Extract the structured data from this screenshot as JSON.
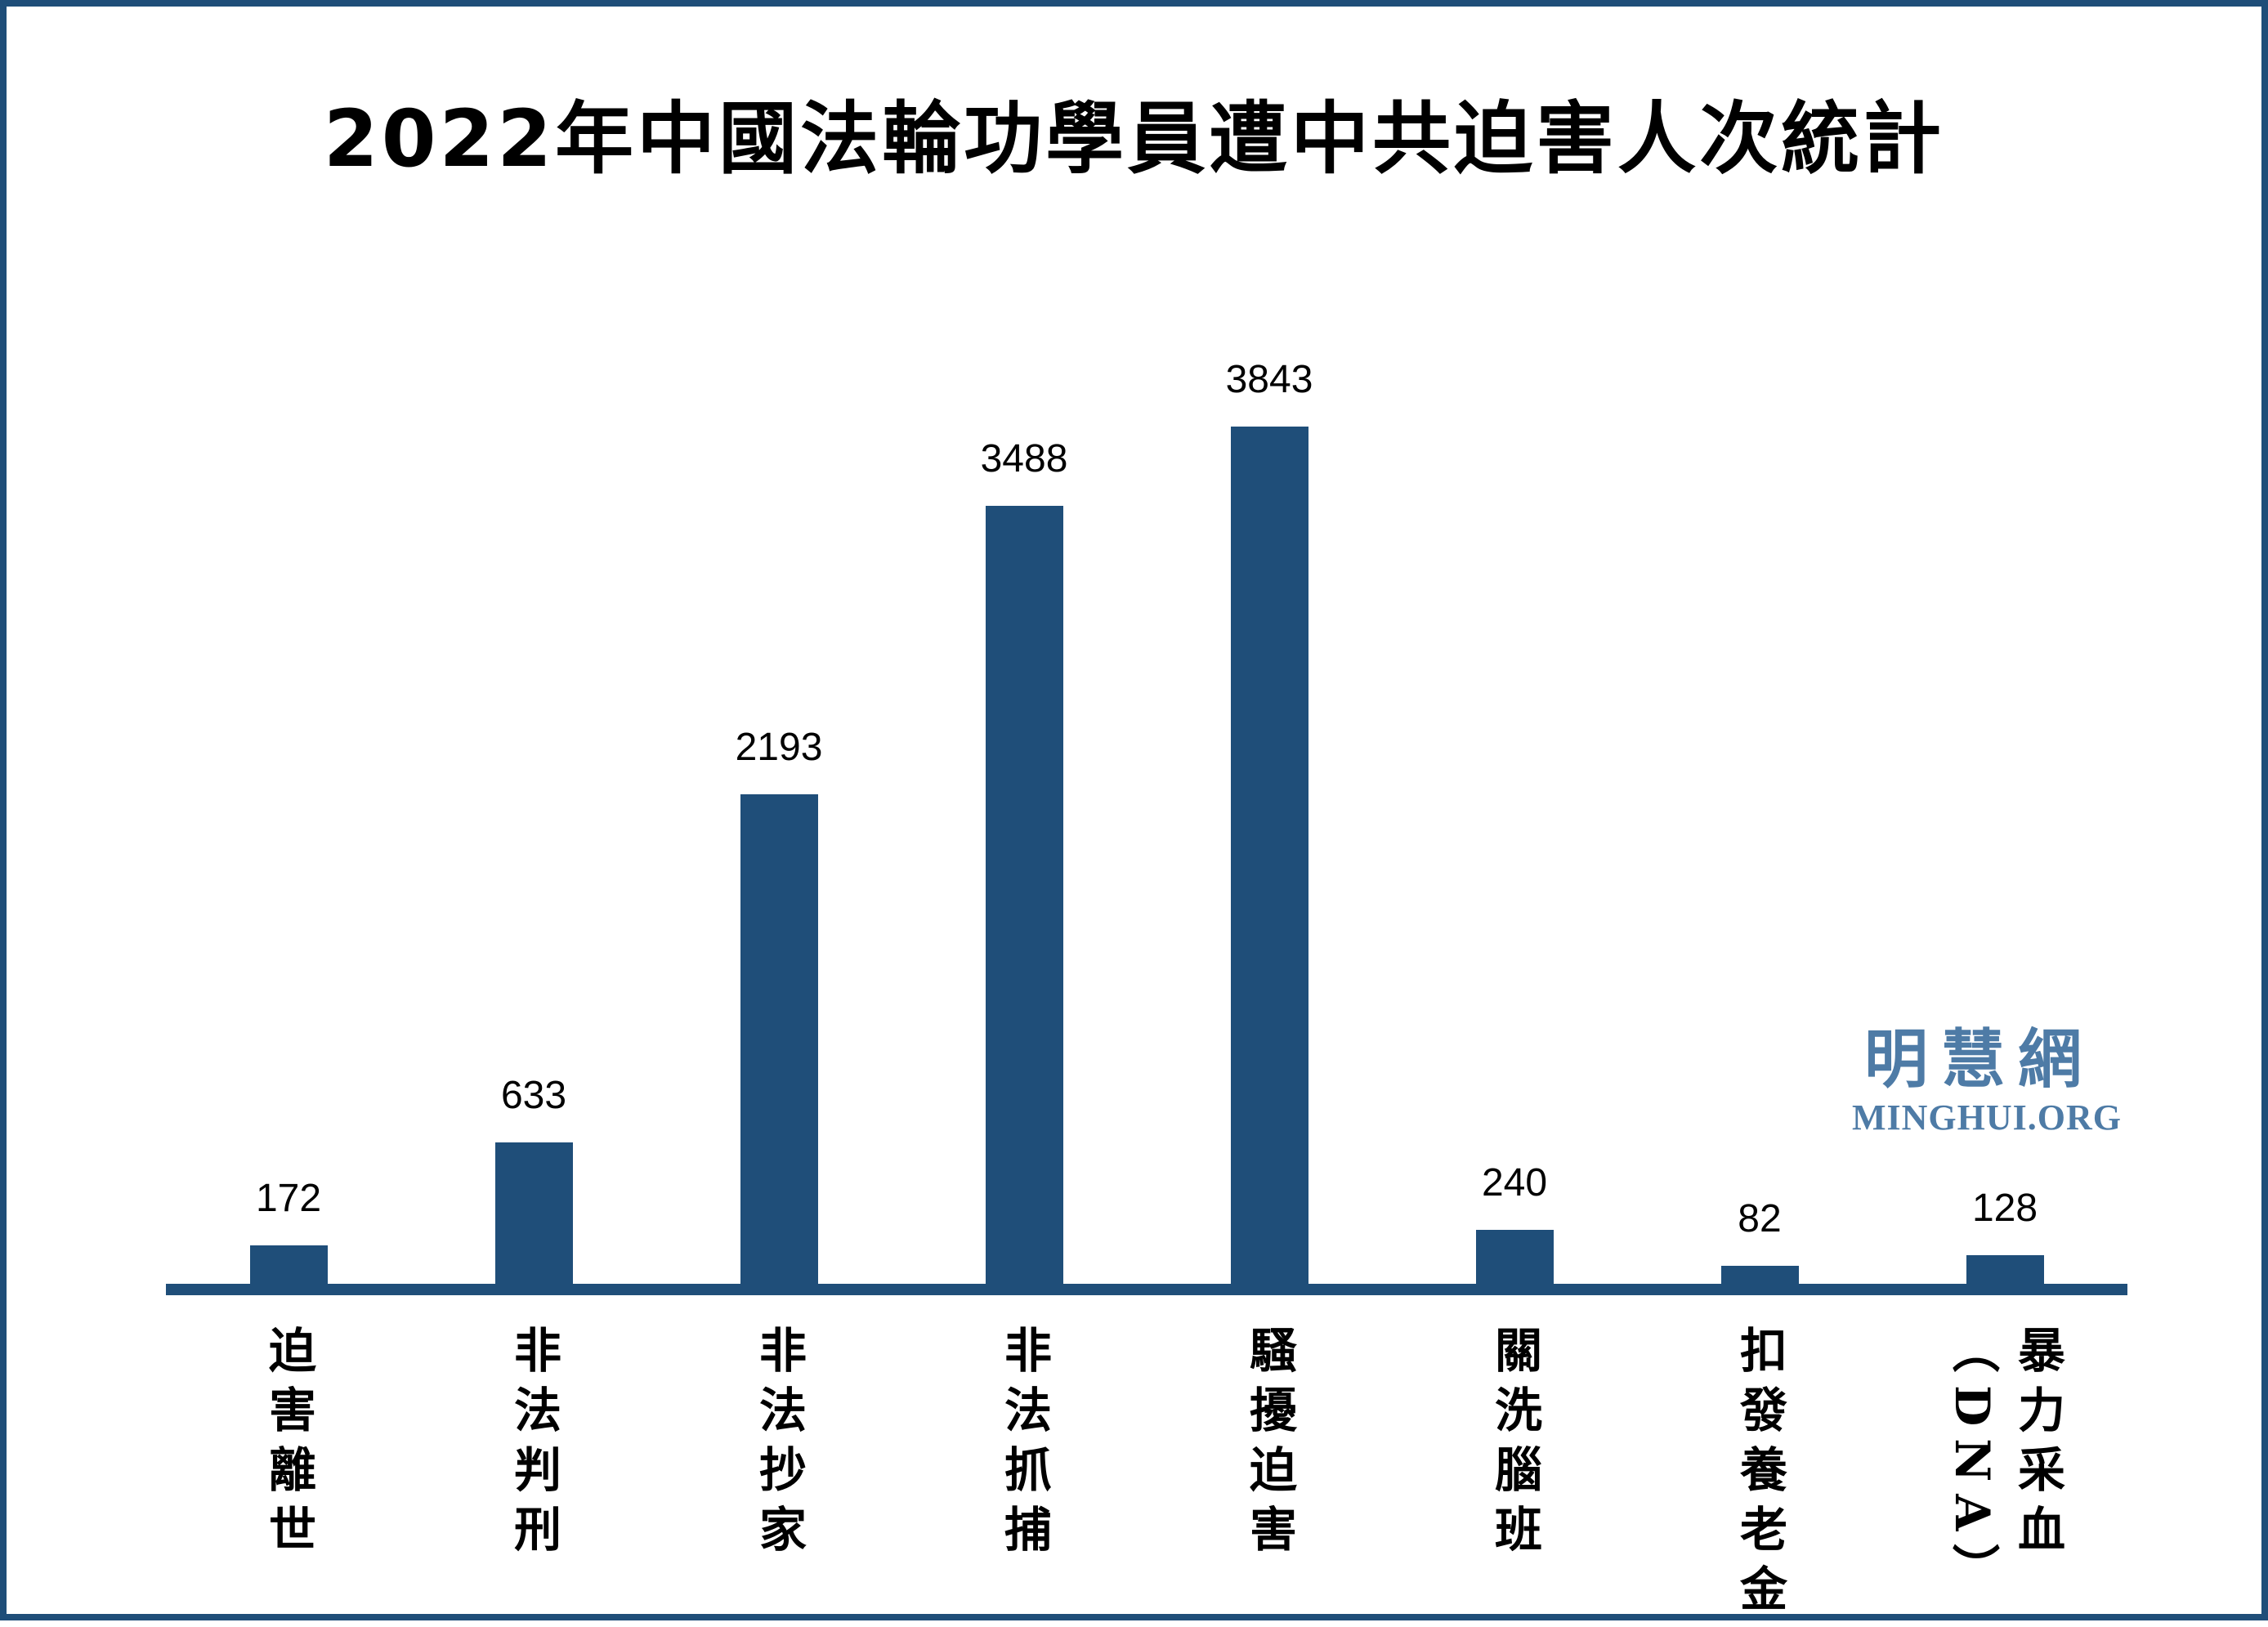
{
  "title": "2022年中國法輪功學員遭中共迫害人次統計",
  "watermark": {
    "cjk": "明慧網",
    "latin": "MINGHUI.ORG",
    "color": "#4E7BA6"
  },
  "colors": {
    "bar": "#1F4E79",
    "axis": "#1F4E79",
    "page_border": "#1F4E79",
    "title_text": "#000000",
    "value_label_text": "#000000",
    "category_label_text": "#000000",
    "background": "#FFFFFF"
  },
  "chart_data": {
    "type": "bar",
    "title": "2022年中國法輪功學員遭中共迫害人次統計",
    "categories": [
      "迫害離世",
      "非法判刑",
      "非法抄家",
      "非法抓捕",
      "騷擾迫害",
      "關洗腦班",
      "扣發養老金",
      "暴力采血（DNA）"
    ],
    "category_columns": [
      [
        "迫害離世"
      ],
      [
        "非法判刑"
      ],
      [
        "非法抄家"
      ],
      [
        "非法抓捕"
      ],
      [
        "騷擾迫害"
      ],
      [
        "關洗腦班"
      ],
      [
        "扣發養老金"
      ],
      [
        "暴力采血",
        "（DNA）"
      ]
    ],
    "values": [
      172,
      633,
      2193,
      3488,
      3843,
      240,
      82,
      128
    ],
    "xlabel": "",
    "ylabel": "",
    "ylim": [
      0,
      3900
    ],
    "grid": false,
    "legend": null,
    "data_labels": true,
    "orientation": "vertical",
    "category_text_direction": "vertical"
  }
}
